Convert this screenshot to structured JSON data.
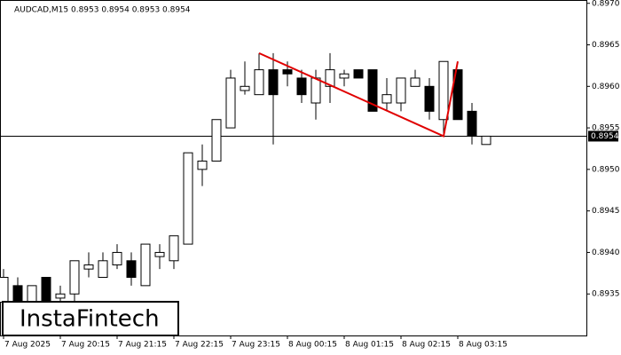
{
  "chart_data": {
    "type": "candlestick",
    "title": "AUDCAD,M15  0.8953 0.8954 0.8953 0.8954",
    "logo": "InstaFintech",
    "categories": [
      "7 Aug 2025",
      null,
      null,
      null,
      "7 Aug 20:15",
      null,
      null,
      null,
      "7 Aug 21:15",
      null,
      null,
      null,
      "7 Aug 22:15",
      null,
      null,
      null,
      "7 Aug 23:15",
      null,
      null,
      null,
      "8 Aug 00:15",
      null,
      null,
      null,
      "8 Aug 01:15",
      null,
      null,
      null,
      "8 Aug 02:15",
      null,
      null,
      null,
      "8 Aug 03:15",
      null,
      null
    ],
    "open": [
      0.8934,
      0.8936,
      0.8934,
      0.8937,
      0.89345,
      0.8935,
      0.8938,
      0.8937,
      0.89385,
      0.8939,
      0.8936,
      0.89395,
      0.8939,
      0.8941,
      0.895,
      0.8951,
      0.8955,
      0.89595,
      0.8959,
      0.8962,
      0.8962,
      0.8961,
      0.8958,
      0.896,
      0.8961,
      0.8962,
      0.8962,
      0.8958,
      0.8958,
      0.896,
      0.896,
      0.8956,
      0.8962,
      0.8957,
      0.8953
    ],
    "high": [
      0.8938,
      0.8937,
      0.8936,
      0.8937,
      0.8936,
      0.8939,
      0.894,
      0.894,
      0.8941,
      0.894,
      0.8941,
      0.8941,
      0.8942,
      0.8952,
      0.8953,
      0.8956,
      0.8962,
      0.8963,
      0.8964,
      0.8964,
      0.8963,
      0.8962,
      0.8962,
      0.8964,
      0.8962,
      0.8962,
      0.8962,
      0.8961,
      0.8961,
      0.8962,
      0.8961,
      0.8963,
      0.8962,
      0.8958,
      0.8954
    ],
    "low": [
      0.8932,
      0.8932,
      0.8932,
      0.8933,
      0.8933,
      0.8934,
      0.8937,
      0.8937,
      0.8938,
      0.8936,
      0.8936,
      0.8938,
      0.8938,
      0.8941,
      0.8948,
      0.8951,
      0.8955,
      0.8959,
      0.8959,
      0.8953,
      0.896,
      0.8958,
      0.8956,
      0.8958,
      0.896,
      0.8961,
      0.8957,
      0.8957,
      0.8957,
      0.896,
      0.8956,
      0.8954,
      0.8956,
      0.8953,
      0.8953
    ],
    "close": [
      0.8937,
      0.8934,
      0.8936,
      0.8934,
      0.8935,
      0.8939,
      0.89385,
      0.8939,
      0.894,
      0.8937,
      0.8941,
      0.894,
      0.8942,
      0.8952,
      0.8951,
      0.8956,
      0.8961,
      0.896,
      0.8962,
      0.8959,
      0.89615,
      0.8959,
      0.8961,
      0.8962,
      0.89615,
      0.8961,
      0.8957,
      0.8959,
      0.8961,
      0.8961,
      0.8957,
      0.8963,
      0.8956,
      0.8954,
      0.8954
    ],
    "up_color": "#ffffff",
    "down_color": "#000000",
    "last_price": 0.8954,
    "pattern": {
      "color": "#e00000",
      "x": [
        18,
        31,
        32
      ],
      "y": [
        0.8964,
        0.8954,
        0.8963
      ]
    },
    "ylim": [
      0.893,
      0.89704
    ],
    "yticks": [
      {
        "value": 0.897,
        "label": "0.8970"
      },
      0.8965,
      {
        "value": 0.896,
        "label": "0.8960"
      },
      0.8955,
      {
        "value": 0.895,
        "label": "0.8950"
      },
      0.8945,
      {
        "value": 0.894,
        "label": "0.8940"
      },
      0.8935
    ]
  }
}
